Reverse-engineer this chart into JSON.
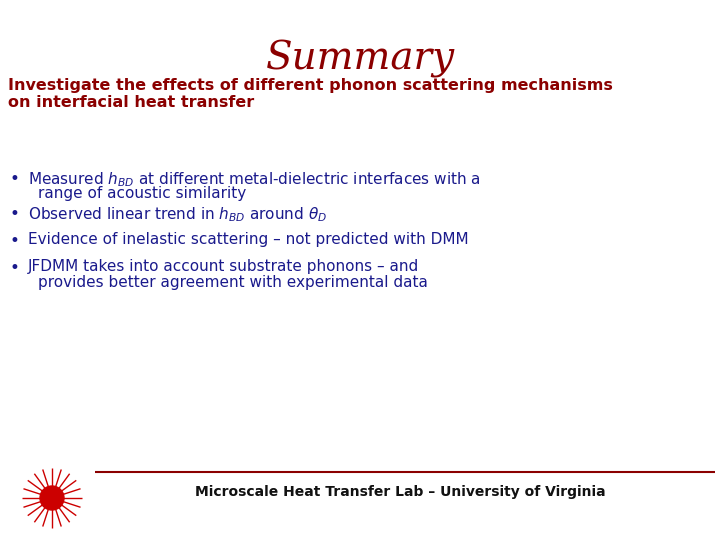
{
  "title": "Summary",
  "title_color": "#8B0000",
  "title_fontsize": 28,
  "subtitle_line1": "Investigate the effects of different phonon scattering mechanisms",
  "subtitle_line2": "on interfacial heat transfer",
  "subtitle_color": "#8B0000",
  "subtitle_fontsize": 11.5,
  "bullet_color": "#1a1a8c",
  "bullet_fontsize": 11,
  "bullets_line1": [
    "Measured $h_{BD}$ at different metal-dielectric interfaces with a",
    "Observed linear trend in $h_{BD}$ around $\\theta_{D}$",
    "Evidence of inelastic scattering – not predicted with DMM",
    "JFDMM takes into account substrate phonons – and"
  ],
  "bullets_line2": [
    "range of acoustic similarity",
    "",
    "",
    "provides better agreement with experimental data"
  ],
  "footer_text": "Microscale Heat Transfer Lab – University of Virginia",
  "footer_color": "#111111",
  "footer_fontsize": 10,
  "line_color": "#8B0000",
  "background_color": "#ffffff",
  "logo_color": "#CC0000"
}
